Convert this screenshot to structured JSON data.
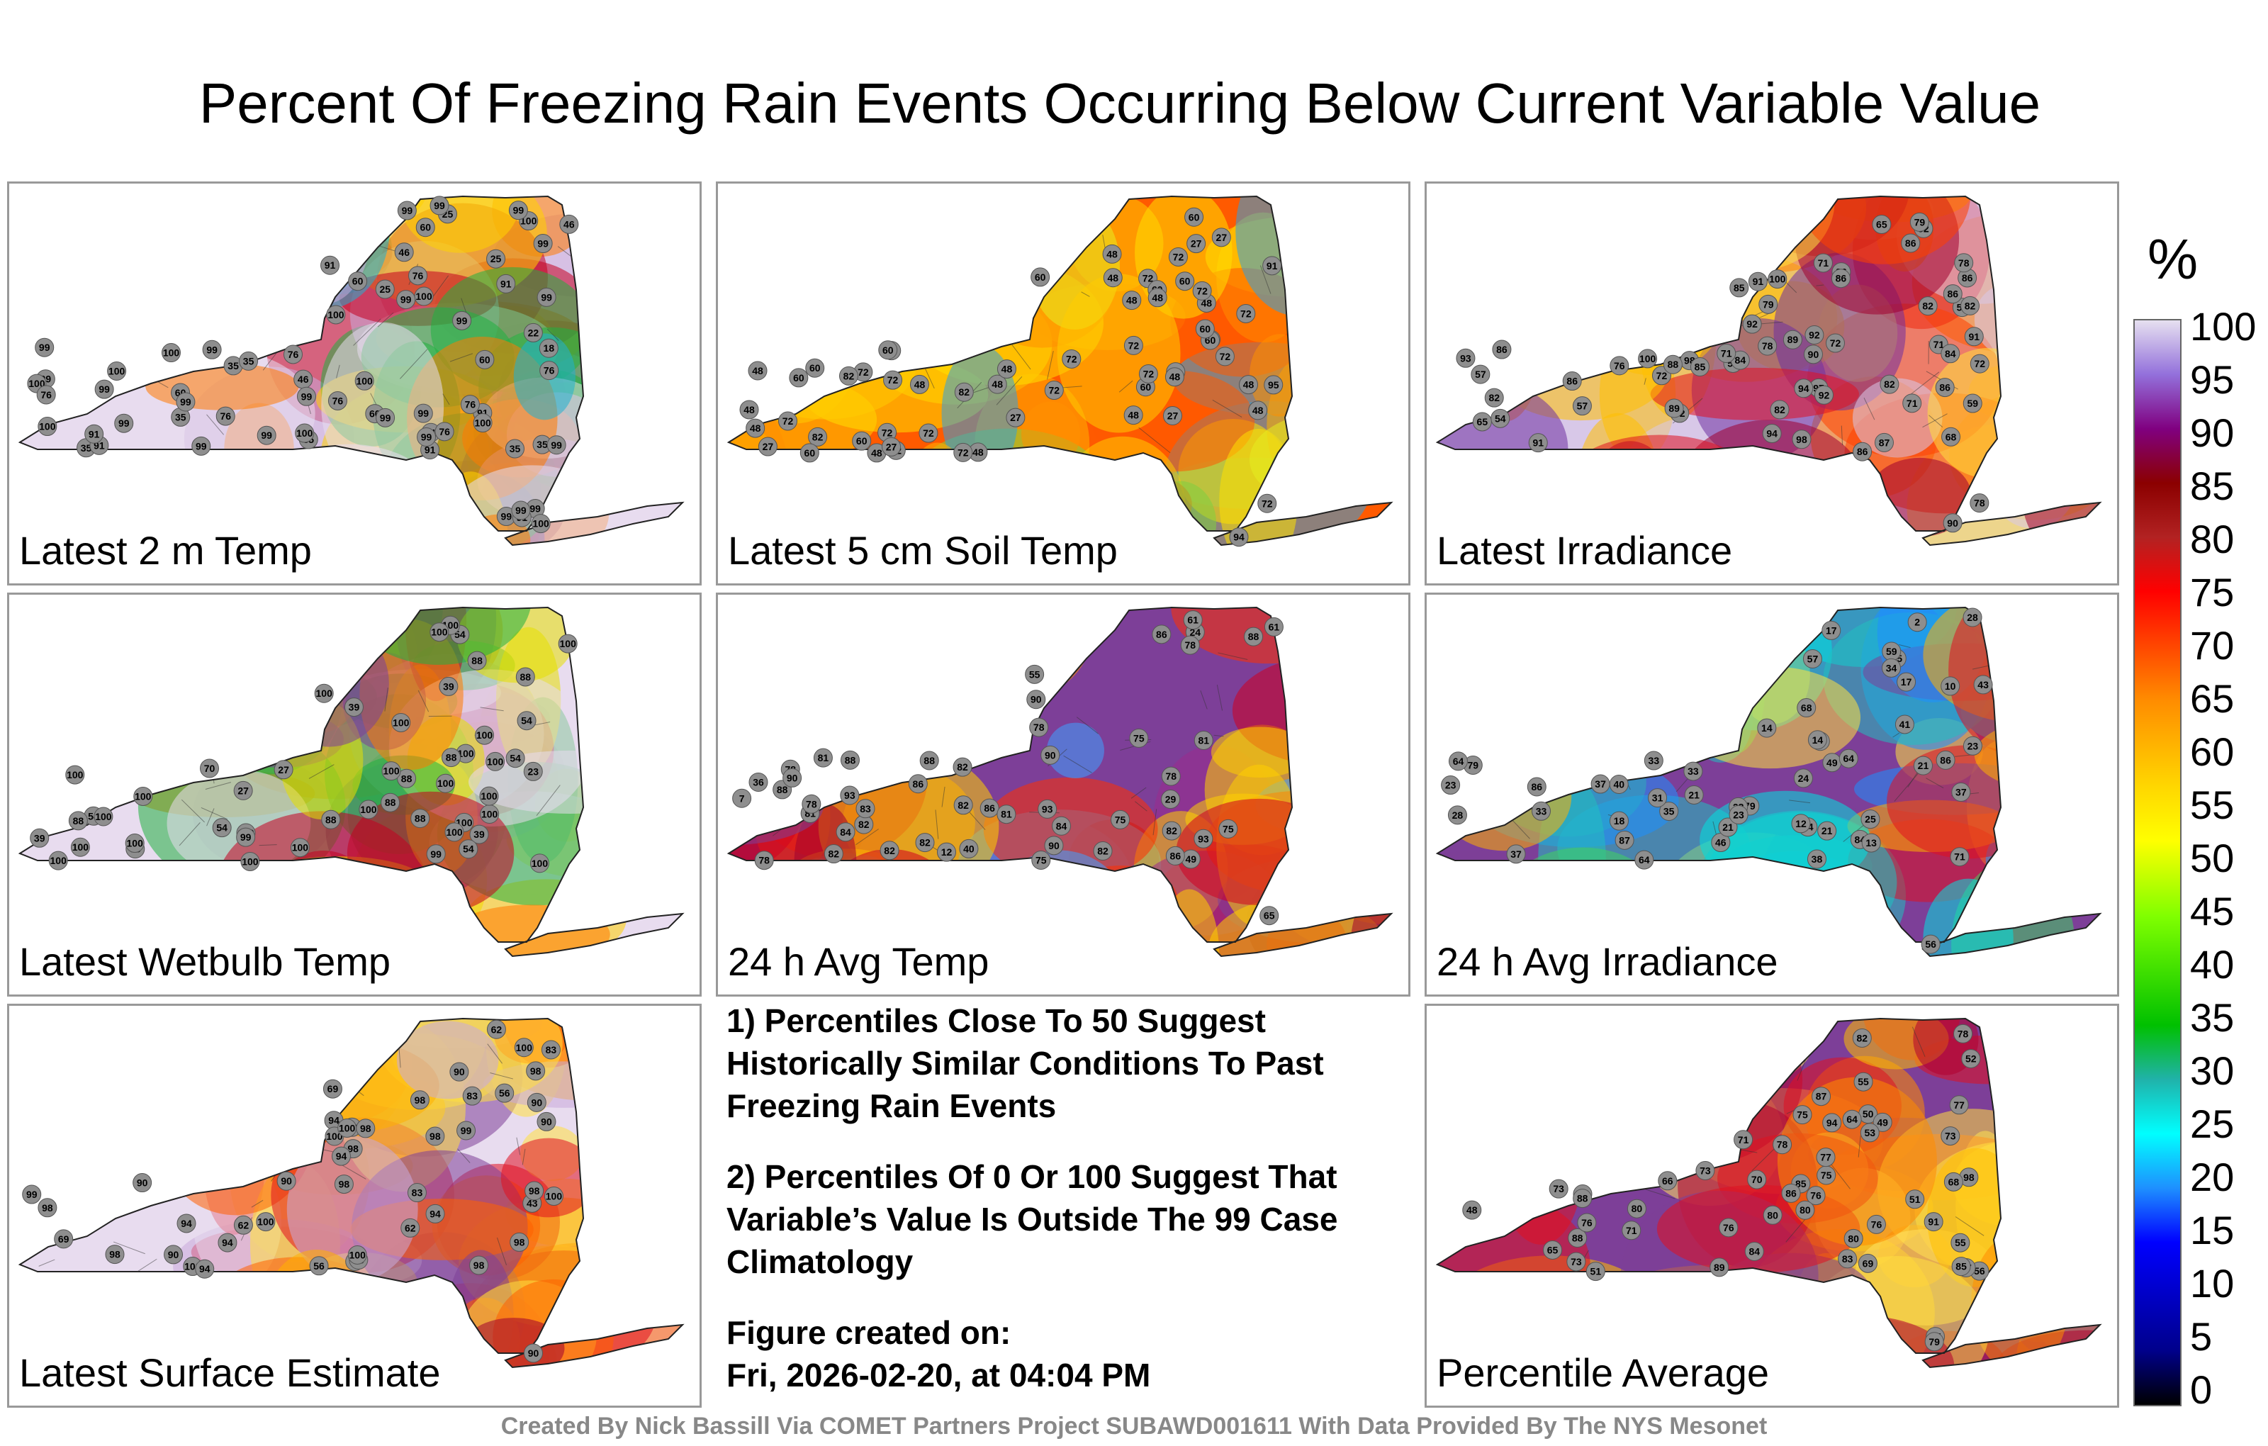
{
  "title": "Percent Of Freezing Rain Events Occurring Below Current Variable Value",
  "panels": [
    {
      "label": "Latest 2 m Temp",
      "scheme": "temp2m",
      "values": [
        "22",
        "25",
        "18",
        "35",
        "35",
        "76",
        "99",
        "35",
        "25",
        "91",
        "99",
        "99",
        "35",
        "46",
        "60",
        "99",
        "91",
        "99",
        "100",
        "25",
        "99",
        "100",
        "100",
        "99",
        "76",
        "60",
        "91",
        "76",
        "99",
        "35",
        "60",
        "100",
        "99",
        "46",
        "35",
        "91",
        "76",
        "100",
        "99",
        "100",
        "99",
        "100",
        "100",
        "99",
        "60",
        "46",
        "76",
        "91",
        "99",
        "100",
        "100",
        "99",
        "91",
        "76",
        "99",
        "76",
        "60",
        "91",
        "35",
        "99",
        "76",
        "99",
        "99",
        "99",
        "99",
        "99",
        "99",
        "100",
        "91",
        "99"
      ]
    },
    {
      "label": "Latest 5 cm Soil Temp",
      "scheme": "soil",
      "values": [
        "72",
        "60",
        "72",
        "60",
        "72",
        "72",
        "27",
        "48",
        "60",
        "48",
        "95",
        "48",
        "72",
        "91",
        "60",
        "72",
        "72",
        "48",
        "72",
        "27",
        "48",
        "60",
        "72",
        "82",
        "72",
        "27",
        "48",
        "48",
        "60",
        "48",
        "72",
        "60",
        "48",
        "60",
        "27",
        "60",
        "72",
        "72",
        "48",
        "60",
        "72",
        "48",
        "27",
        "82",
        "60",
        "48",
        "72",
        "48",
        "72",
        "72",
        "60",
        "82",
        "48",
        "60",
        "48",
        "72",
        "94",
        "48",
        "27",
        "60",
        "48"
      ]
    },
    {
      "label": "Latest Irradiance",
      "scheme": "irr",
      "values": [
        "86",
        "94",
        "91",
        "92",
        "82",
        "86",
        "85",
        "68",
        "54",
        "76",
        "79",
        "71",
        "57",
        "82",
        "65",
        "52",
        "53",
        "59",
        "54",
        "97",
        "100",
        "82",
        "57",
        "86",
        "71",
        "78",
        "86",
        "90",
        "94",
        "84",
        "98",
        "89",
        "72",
        "100",
        "84",
        "90",
        "79",
        "71",
        "92",
        "82",
        "86",
        "72",
        "86",
        "91",
        "93",
        "82",
        "89",
        "86",
        "65",
        "78",
        "88",
        "92",
        "82",
        "98",
        "78",
        "71",
        "72",
        "86",
        "85",
        "87",
        "91",
        "86"
      ]
    },
    {
      "label": "Latest Wetbulb Temp",
      "scheme": "wet",
      "values": [
        "23",
        "39",
        "54",
        "39",
        "54",
        "27",
        "39",
        "88",
        "54",
        "70",
        "88",
        "100",
        "100",
        "39",
        "27",
        "54",
        "88",
        "100",
        "100",
        "100",
        "100",
        "100",
        "88",
        "54",
        "100",
        "100",
        "100",
        "88",
        "88",
        "100",
        "100",
        "100",
        "100",
        "100",
        "100",
        "88",
        "88",
        "54",
        "100",
        "99",
        "100",
        "100",
        "99",
        "100",
        "100",
        "100",
        "88",
        "100",
        "100",
        "100"
      ]
    },
    {
      "label": "24 h Avg Temp",
      "scheme": "avg",
      "values": [
        "29",
        "36",
        "12",
        "7",
        "24",
        "40",
        "55",
        "49",
        "75",
        "78",
        "61",
        "82",
        "81",
        "88",
        "82",
        "84",
        "75",
        "86",
        "90",
        "88",
        "86",
        "90",
        "82",
        "82",
        "81",
        "78",
        "65",
        "78",
        "75",
        "61",
        "78",
        "93",
        "90",
        "93",
        "81",
        "88",
        "82",
        "78",
        "82",
        "81",
        "75",
        "82",
        "86",
        "84",
        "86",
        "82",
        "83",
        "78",
        "93",
        "88",
        "90"
      ]
    },
    {
      "label": "24 h Avg Irradiance",
      "scheme": "avgirr",
      "values": [
        "64",
        "84",
        "79",
        "43",
        "68",
        "37",
        "35",
        "41",
        "25",
        "14",
        "10",
        "21",
        "12",
        "57",
        "64",
        "56",
        "33",
        "28",
        "17",
        "13",
        "2",
        "17",
        "28",
        "86",
        "71",
        "40",
        "38",
        "21",
        "15",
        "23",
        "49",
        "79",
        "59",
        "64",
        "87",
        "86",
        "64",
        "46",
        "21",
        "33",
        "23",
        "14",
        "28",
        "34",
        "24",
        "33",
        "23",
        "35",
        "37",
        "18",
        "21",
        "31",
        "37"
      ]
    },
    {
      "label": "Latest Surface Estimate",
      "scheme": "sfc",
      "values": [
        "56",
        "43",
        "56",
        "62",
        "62",
        "83",
        "90",
        "62",
        "69",
        "83",
        "98",
        "90",
        "62",
        "90",
        "94",
        "100",
        "100",
        "99",
        "98",
        "98",
        "100",
        "99",
        "100",
        "98",
        "94",
        "98",
        "90",
        "83",
        "69",
        "83",
        "90",
        "90",
        "94",
        "98",
        "94",
        "98",
        "99",
        "100",
        "100",
        "98",
        "100",
        "94",
        "98",
        "94",
        "98",
        "90",
        "98"
      ]
    },
    {
      "label": "Percentile Average",
      "scheme": "pavg",
      "values": [
        "50",
        "56",
        "49",
        "53",
        "51",
        "55",
        "52",
        "65",
        "73",
        "66",
        "76",
        "73",
        "67",
        "51",
        "55",
        "89",
        "88",
        "85",
        "80",
        "76",
        "71",
        "64",
        "48",
        "91",
        "87",
        "73",
        "75",
        "79",
        "80",
        "71",
        "98",
        "87",
        "86",
        "85",
        "73",
        "70",
        "77",
        "76",
        "69",
        "94",
        "79",
        "76",
        "78",
        "82",
        "68",
        "80",
        "75",
        "88",
        "77",
        "83",
        "84",
        "80",
        "78"
      ]
    }
  ],
  "notes": [
    "1) Percentiles Close To 50 Suggest Historically Similar Conditions To Past Freezing Rain Events",
    "2) Percentiles Of 0 Or 100 Suggest That Variable’s Value Is Outside The 99 Case Climatology"
  ],
  "figure_created": {
    "label": "Figure created on:",
    "date": "Fri, 2026-02-20, at 04:04 PM"
  },
  "colorbar": {
    "unit": "%",
    "ticks": [
      "100",
      "95",
      "90",
      "85",
      "80",
      "75",
      "70",
      "65",
      "60",
      "55",
      "50",
      "45",
      "40",
      "35",
      "30",
      "25",
      "20",
      "15",
      "10",
      "5",
      "0"
    ]
  },
  "footer": "Created By Nick Bassill Via COMET Partners Project SUBAWD001611 With Data Provided By The NYS Mesonet"
}
